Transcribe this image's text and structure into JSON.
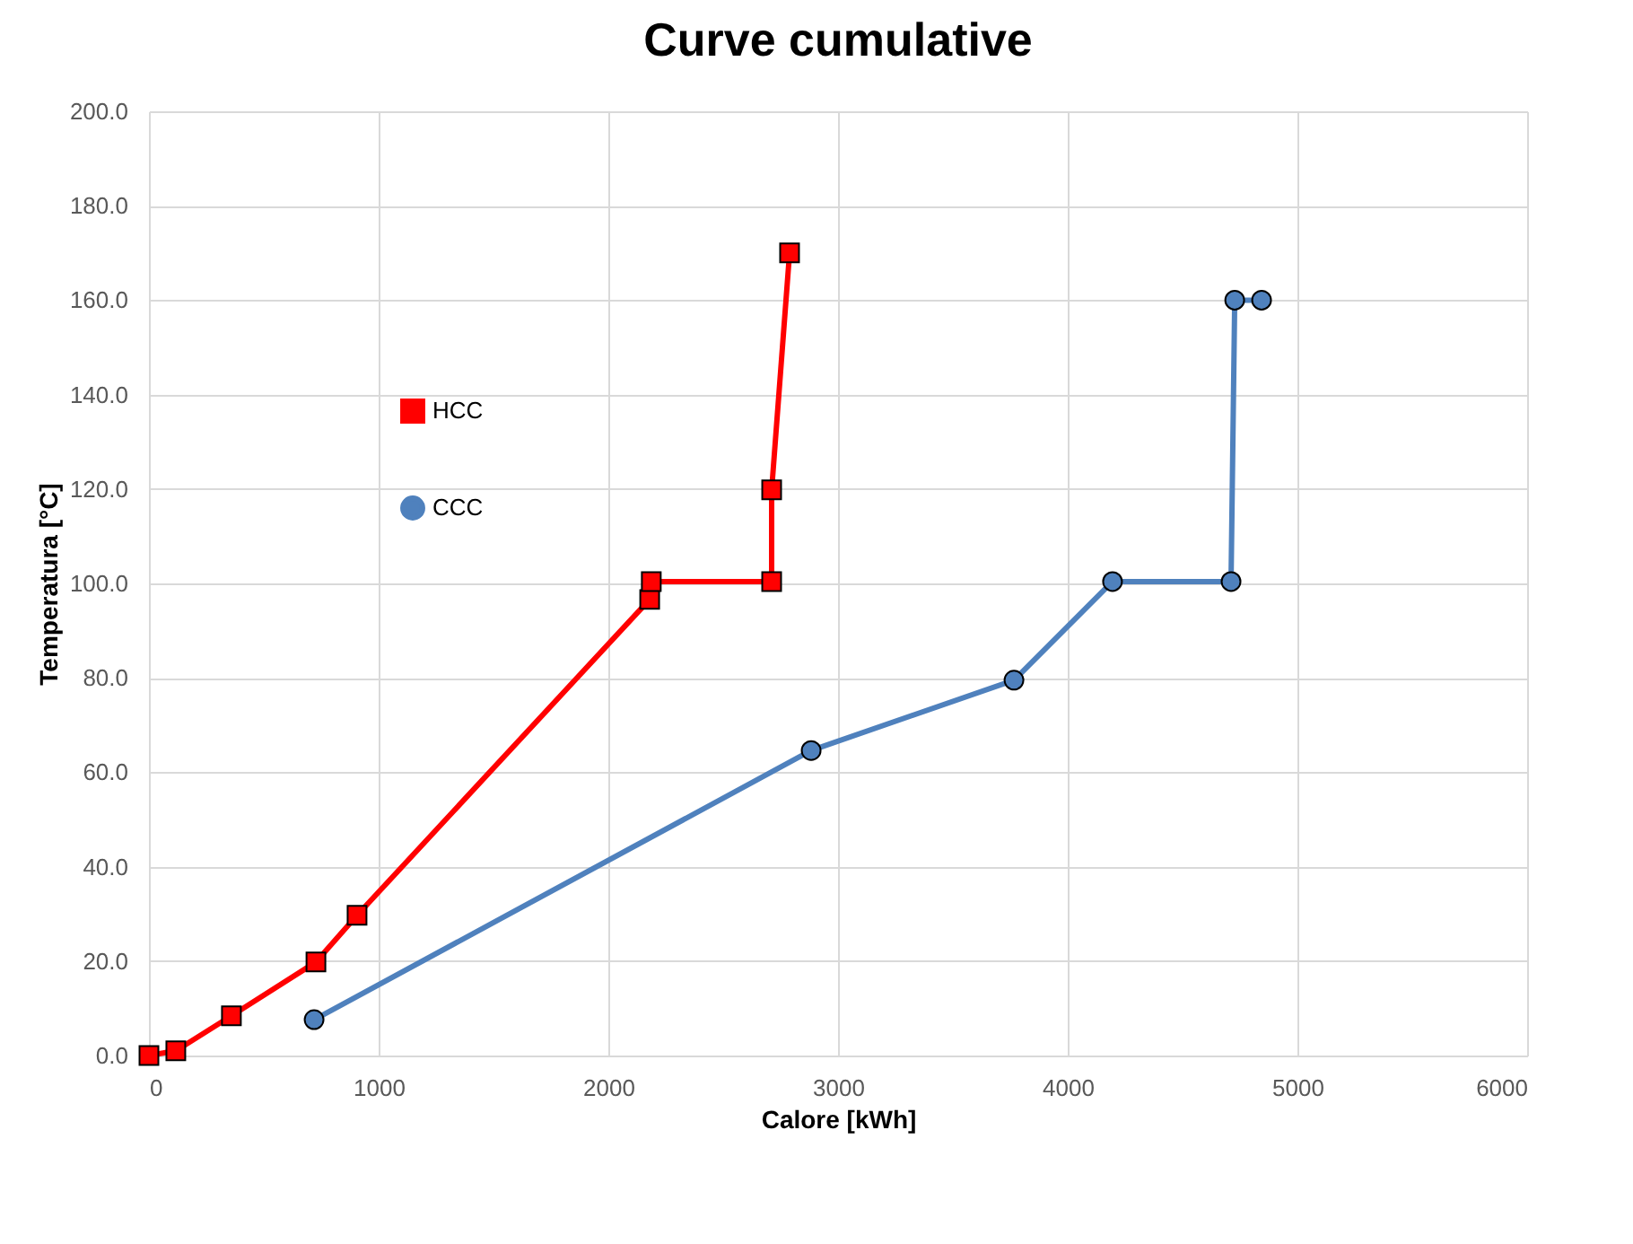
{
  "chart_data": {
    "type": "line",
    "title": "Curve cumulative",
    "xlabel": "Calore [kWh]",
    "ylabel": "Temperatura [°C]",
    "xlim": [
      0,
      6000
    ],
    "xticks": [
      0,
      1000,
      2000,
      3000,
      4000,
      5000,
      6000
    ],
    "ylim": [
      0,
      200
    ],
    "yticks": [
      {
        "value": 0,
        "label": "0.0"
      },
      {
        "value": 20,
        "label": "20.0"
      },
      {
        "value": 40,
        "label": "40.0"
      },
      {
        "value": 60,
        "label": "60.0"
      },
      {
        "value": 80,
        "label": "80.0"
      },
      {
        "value": 100,
        "label": "100.0"
      },
      {
        "value": 120,
        "label": "120.0"
      },
      {
        "value": 140,
        "label": "140.0"
      },
      {
        "value": 160,
        "label": "160.0"
      },
      {
        "value": 180,
        "label": "180.0"
      },
      {
        "value": 200,
        "label": "200.0"
      }
    ],
    "grid": true,
    "legend": "left",
    "series": [
      {
        "name": "HCC",
        "color": "#ff0000",
        "marker": "square",
        "x": [
          0,
          117,
          359,
          727,
          906,
          2180,
          2187,
          2711,
          2711,
          2789
        ],
        "values": [
          0,
          1,
          8.4,
          19.8,
          29.7,
          96.6,
          100.4,
          100.4,
          119.8,
          170
        ]
      },
      {
        "name": "CCC",
        "color": "#4f81bd",
        "marker": "circle",
        "x": [
          719,
          2883,
          3766,
          4195,
          4711,
          4727,
          4844
        ],
        "values": [
          7.6,
          64.6,
          79.5,
          100.4,
          100.4,
          160,
          160
        ]
      }
    ]
  }
}
